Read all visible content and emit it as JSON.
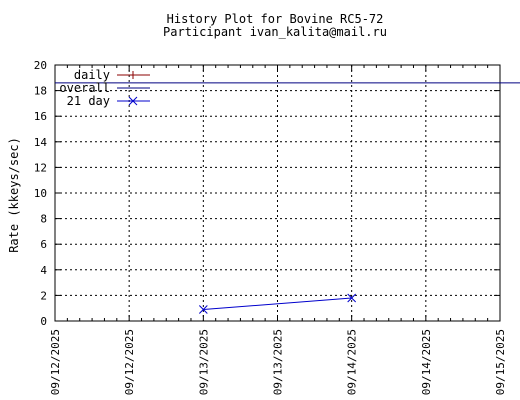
{
  "chart_data": {
    "type": "line",
    "title": "History Plot for Bovine RC5-72",
    "subtitle": "Participant ivan_kalita@mail.ru",
    "xlabel": "",
    "ylabel": "Rate (kkeys/sec)",
    "ylim": [
      0,
      20
    ],
    "y_ticks": [
      0,
      2,
      4,
      6,
      8,
      10,
      12,
      14,
      16,
      18,
      20
    ],
    "x_range": [
      "2025-09-12T00:00",
      "2025-09-15T00:00"
    ],
    "x_ticks": [
      {
        "at": "2025-09-12T00:00",
        "label": "09/12/2025"
      },
      {
        "at": "2025-09-12T12:00",
        "label": "09/12/2025"
      },
      {
        "at": "2025-09-13T00:00",
        "label": "09/13/2025"
      },
      {
        "at": "2025-09-13T12:00",
        "label": "09/13/2025"
      },
      {
        "at": "2025-09-14T00:00",
        "label": "09/14/2025"
      },
      {
        "at": "2025-09-14T12:00",
        "label": "09/14/2025"
      },
      {
        "at": "2025-09-15T00:00",
        "label": "09/15/2025"
      }
    ],
    "grid": true,
    "legend_position": "top-left",
    "series": [
      {
        "name": "daily",
        "color": "#8b0000",
        "marker": "plus",
        "points": []
      },
      {
        "name": "overall",
        "color": "#000080",
        "marker": "none",
        "hline": 18.6
      },
      {
        "name": "21 day",
        "color": "#0000cc",
        "marker": "cross",
        "points": [
          {
            "x": "2025-09-13T00:00",
            "y": 0.9
          },
          {
            "x": "2025-09-14T00:00",
            "y": 1.8
          }
        ]
      }
    ]
  }
}
